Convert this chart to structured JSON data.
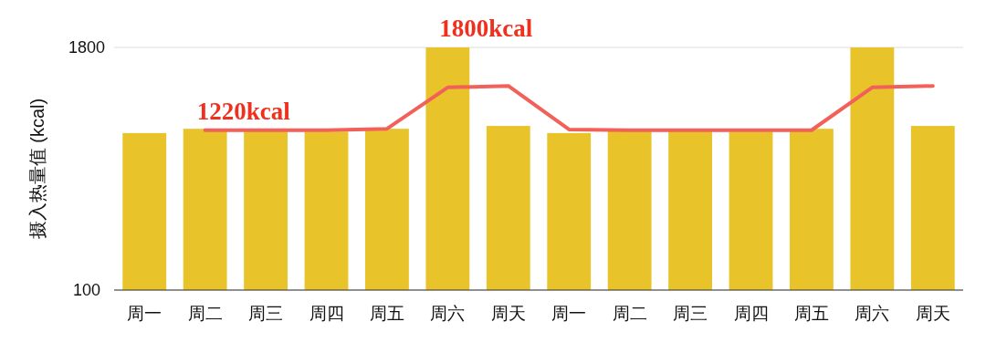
{
  "chart_data": {
    "type": "bar",
    "ylabel": "摄入热量值 (kcal)",
    "categories": [
      "周一",
      "周二",
      "周三",
      "周四",
      "周五",
      "周六",
      "周天",
      "周一",
      "周二",
      "周三",
      "周四",
      "周五",
      "周六",
      "周天"
    ],
    "series": [
      {
        "color": "#e8c42a",
        "values": [
          1200,
          1230,
          1220,
          1210,
          1230,
          1800,
          1250,
          1200,
          1220,
          1220,
          1210,
          1230,
          1800,
          1250
        ]
      },
      {
        "type": "line",
        "color": "#f2605a",
        "values": [
          null,
          1220,
          1220,
          1220,
          1230,
          1520,
          1530,
          1225,
          1220,
          1220,
          1220,
          1220,
          1520,
          1530
        ]
      }
    ],
    "ylim": [
      100,
      1800
    ],
    "yticks": [
      100,
      1800
    ],
    "grid": "y",
    "marker": "none",
    "line_style": "solid",
    "annotations": [
      {
        "text": "1220kcal",
        "x": "周二",
        "y": 1220
      },
      {
        "text": "1800kcal",
        "x": "周六",
        "y": 1800
      }
    ]
  }
}
